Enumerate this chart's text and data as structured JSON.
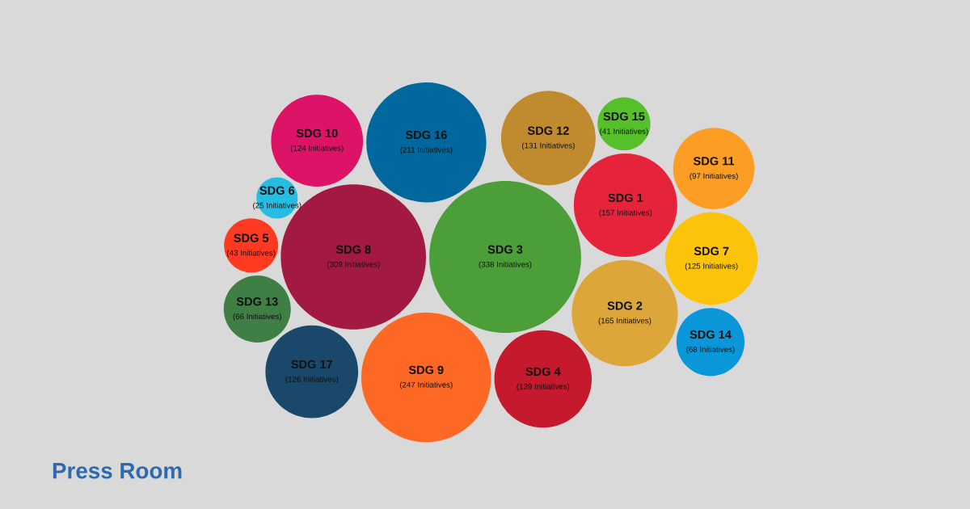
{
  "chart_data": {
    "type": "other",
    "categories": [
      "SDG 3",
      "SDG 8",
      "SDG 9",
      "SDG 16",
      "SDG 4",
      "SDG 2",
      "SDG 1",
      "SDG 12",
      "SDG 7",
      "SDG 10",
      "SDG 17",
      "SDG 11",
      "SDG 14",
      "SDG 13",
      "SDG 5",
      "SDG 15",
      "SDG 6"
    ],
    "values": [
      338,
      309,
      247,
      211,
      139,
      165,
      157,
      131,
      125,
      124,
      126,
      97,
      68,
      66,
      43,
      41,
      25
    ],
    "colors": [
      "#4c9f38",
      "#a21942",
      "#fd6925",
      "#00689d",
      "#c5192d",
      "#dda63a",
      "#e5243b",
      "#bf8b2e",
      "#fcc30b",
      "#dd1367",
      "#19486a",
      "#fd9d24",
      "#0a97d9",
      "#3f7e44",
      "#ff3a21",
      "#56c02b",
      "#26bde2"
    ],
    "value_labels": [
      "(338 Initiatives)",
      "(309 Initiatives)",
      "(247 Initiatives)",
      "(211 Initiatives)",
      "(139 Initiatives)",
      "(165 Initiatives)",
      "(157 Initiatives)",
      "(131 Initiatives)",
      "(125 Initiatives)",
      "(124 Initiatives)",
      "(126 Initiatives)",
      "(97 Initiatives)",
      "(68 Initiatives)",
      "(66 Initiatives)",
      "(43 Initiatives)",
      "(41 Initiatives)",
      "(25 Initiatives)"
    ],
    "annotations": [
      "Press Room"
    ]
  }
}
